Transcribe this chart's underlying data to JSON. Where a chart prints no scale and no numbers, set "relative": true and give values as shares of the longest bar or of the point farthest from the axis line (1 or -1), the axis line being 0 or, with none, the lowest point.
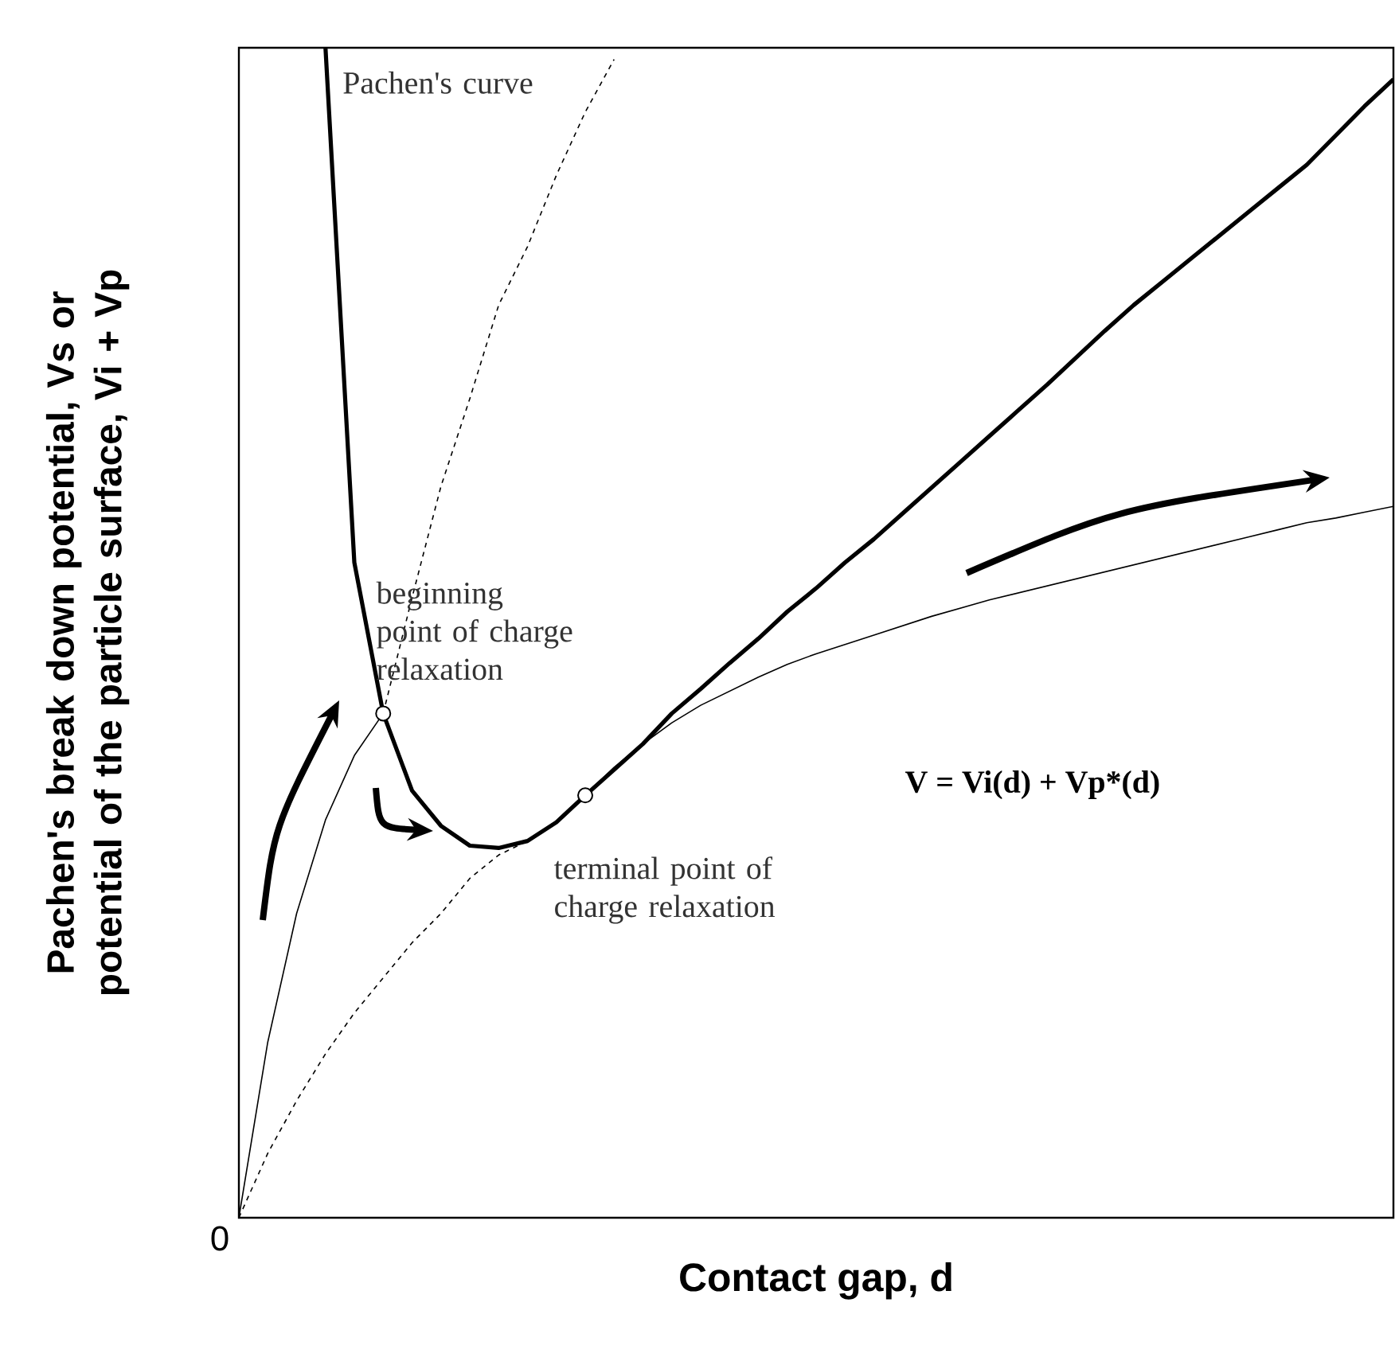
{
  "chart_data": {
    "type": "line",
    "relative": true,
    "xlabel": "Contact gap, d",
    "ylabel": "Pachen's break down potential, Vs or potential of the particle surface, Vi + Vp",
    "categories": [
      null,
      null,
      null,
      null,
      null,
      null,
      null,
      null,
      null,
      null,
      null,
      null,
      null,
      null,
      null,
      null,
      null,
      null,
      null,
      null,
      null,
      null,
      null,
      null,
      null,
      null,
      null,
      null,
      null,
      null,
      null,
      null,
      null,
      null,
      null,
      null,
      null,
      null,
      null,
      null,
      null
    ],
    "annotations": [
      "Pachen's curve",
      "beginning point of charge relaxation",
      "terminal point of charge relaxation",
      "**V = Vi(d) + Vp*(d)**",
      "0"
    ],
    "series": [
      {
        "color": "#000000",
        "line_style": "solid",
        "values": [
          null,
          null,
          null,
          1.0,
          0.56,
          0.431,
          0.365,
          0.335,
          0.318,
          0.316,
          0.322,
          0.338,
          0.361,
          0.383,
          0.405,
          0.431,
          0.452,
          0.474,
          0.495,
          0.518,
          0.538,
          0.56,
          0.58,
          0.602,
          0.624,
          0.646,
          0.668,
          0.69,
          0.712,
          0.735,
          0.758,
          0.78,
          0.8,
          0.82,
          0.84,
          0.86,
          0.88,
          0.9,
          0.925,
          0.95,
          0.973
        ]
      },
      {
        "color": "#000000",
        "line_style": "dashed",
        "values": [
          null,
          null,
          null,
          null,
          null,
          0.431,
          0.53,
          0.625,
          0.7,
          0.78,
          0.83,
          0.891,
          0.945,
          0.99,
          null,
          null,
          null,
          null,
          null,
          null,
          null,
          null,
          null,
          null,
          null,
          null,
          null,
          null,
          null,
          null,
          null,
          null,
          null,
          null,
          null,
          null,
          null,
          null,
          null,
          null,
          null
        ]
      },
      {
        "color": "#000000",
        "line_style": "dashed",
        "values": [
          0.0,
          0.055,
          0.1,
          0.14,
          0.175,
          0.205,
          0.235,
          0.26,
          0.29,
          0.31,
          0.322,
          null,
          null,
          null,
          null,
          null,
          null,
          null,
          null,
          null,
          null,
          null,
          null,
          null,
          null,
          null,
          null,
          null,
          null,
          null,
          null,
          null,
          null,
          null,
          null,
          null,
          null,
          null,
          null,
          null,
          null
        ]
      },
      {
        "color": "#000000",
        "line_style": "solid",
        "values": [
          0.0,
          0.15,
          0.26,
          0.34,
          0.395,
          0.431,
          null,
          null,
          null,
          null,
          null,
          null,
          null,
          null,
          null,
          null,
          null,
          null,
          null,
          null,
          null,
          null,
          null,
          null,
          null,
          null,
          null,
          null,
          null,
          null,
          null,
          null,
          null,
          null,
          null,
          null,
          null,
          null,
          null,
          null,
          null
        ]
      },
      {
        "color": "#000000",
        "line_style": "solid",
        "values": [
          null,
          null,
          null,
          null,
          null,
          null,
          null,
          null,
          null,
          null,
          null,
          null,
          0.361,
          0.385,
          0.405,
          0.423,
          0.438,
          0.45,
          0.462,
          0.473,
          0.482,
          0.49,
          0.498,
          0.506,
          0.514,
          0.521,
          0.528,
          0.534,
          0.54,
          0.546,
          0.552,
          0.558,
          0.564,
          0.57,
          0.576,
          0.582,
          0.588,
          0.594,
          0.598,
          0.603,
          0.608
        ]
      }
    ]
  }
}
